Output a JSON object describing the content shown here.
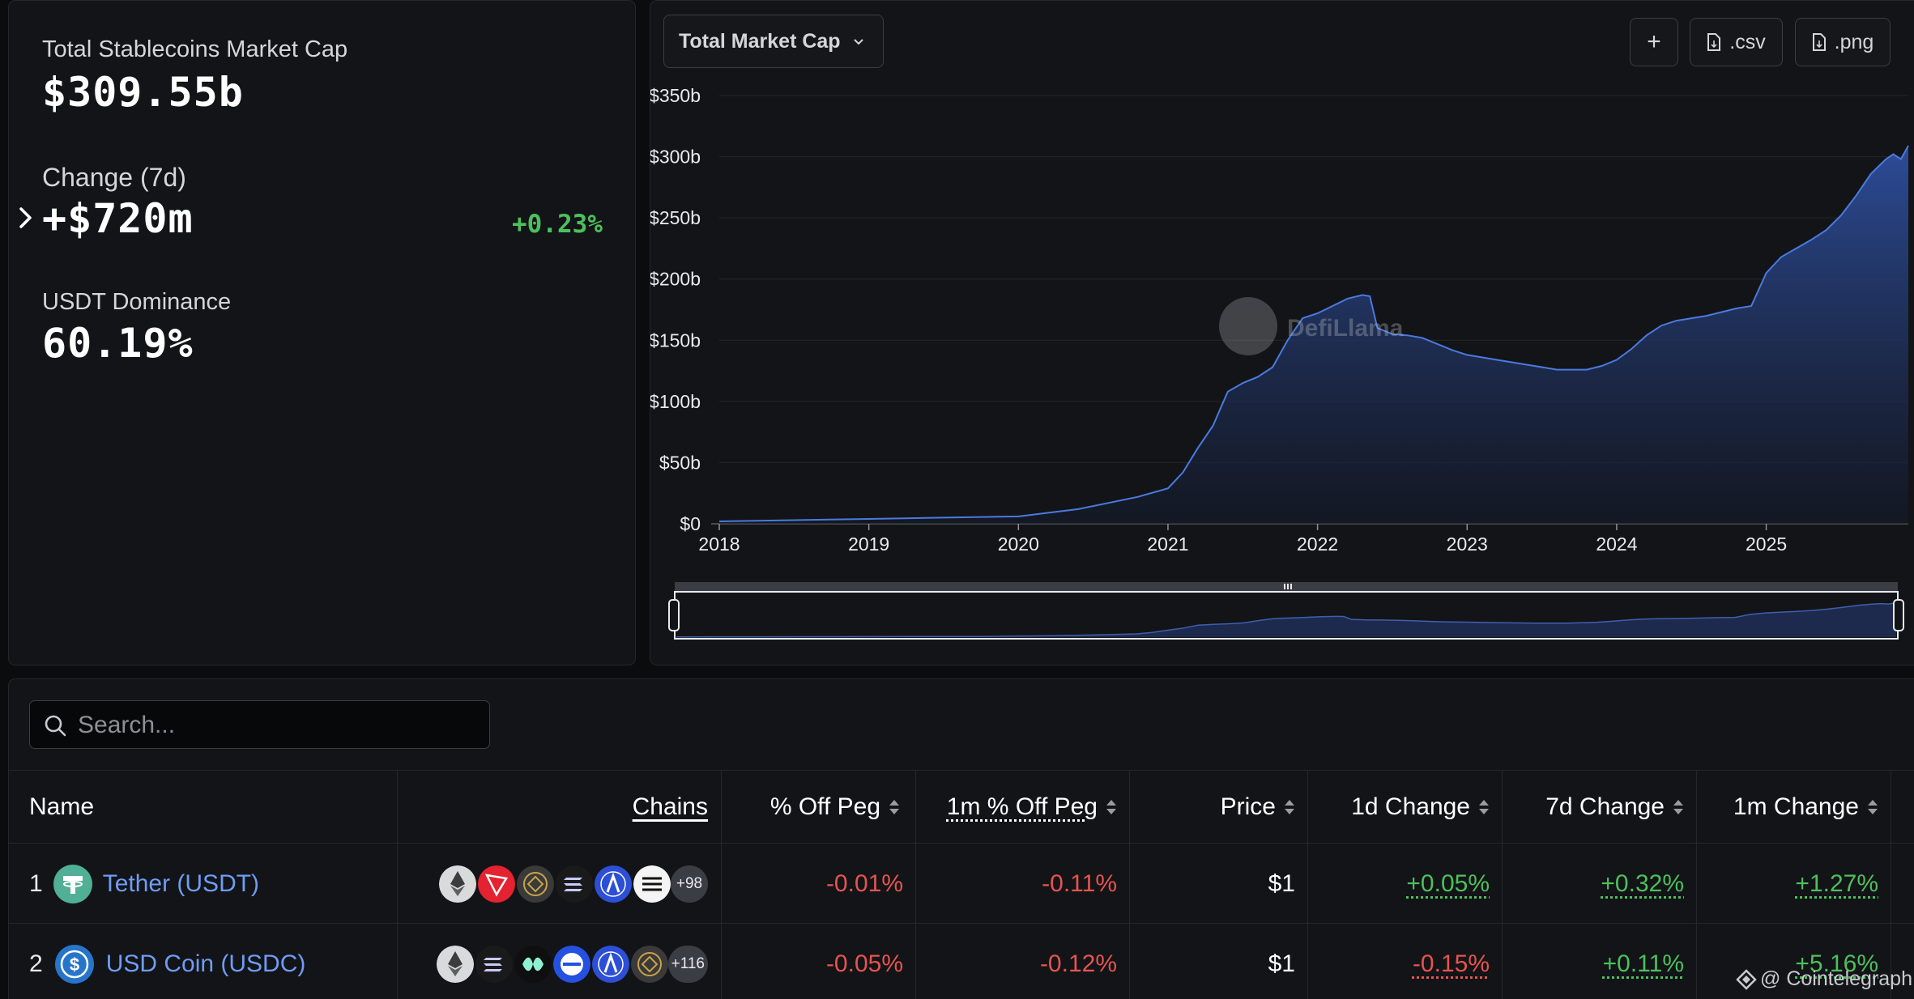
{
  "colors": {
    "accent": "#4a7ae0",
    "positive": "#4cc05c",
    "negative": "#e5544f",
    "link": "#6f9cf4"
  },
  "stats": {
    "total_label": "Total Stablecoins Market Cap",
    "total_value": "$309.55b",
    "change_label": "Change (7d)",
    "change_value": "+$720m",
    "change_pct": "+0.23%",
    "dominance_label": "USDT Dominance",
    "dominance_value": "60.19%"
  },
  "chart_panel": {
    "metric_select": "Total Market Cap",
    "add_label": "+",
    "csv_label": ".csv",
    "png_label": ".png",
    "watermark": "DefiLlama"
  },
  "chart_data": {
    "type": "area",
    "title": "",
    "xlabel": "",
    "ylabel": "",
    "ylim": [
      0,
      350
    ],
    "xlim": [
      2018.0,
      2025.95
    ],
    "y_unit": "billions USD",
    "yticks": [
      "$0",
      "$50b",
      "$100b",
      "$150b",
      "$200b",
      "$250b",
      "$300b",
      "$350b"
    ],
    "xticks": [
      "2018",
      "2019",
      "2020",
      "2021",
      "2022",
      "2023",
      "2024",
      "2025"
    ],
    "grid": true,
    "legend": "none",
    "series": [
      {
        "x": [
          2018.0,
          2018.5,
          2019.0,
          2019.5,
          2020.0,
          2020.2,
          2020.4,
          2020.6,
          2020.8,
          2021.0,
          2021.1,
          2021.2,
          2021.3,
          2021.4,
          2021.5,
          2021.6,
          2021.7,
          2021.8,
          2021.9,
          2022.0,
          2022.1,
          2022.2,
          2022.3,
          2022.35,
          2022.4,
          2022.5,
          2022.6,
          2022.7,
          2022.8,
          2022.9,
          2023.0,
          2023.2,
          2023.4,
          2023.6,
          2023.8,
          2023.9,
          2024.0,
          2024.1,
          2024.2,
          2024.3,
          2024.4,
          2024.6,
          2024.8,
          2024.9,
          2025.0,
          2025.1,
          2025.2,
          2025.3,
          2025.4,
          2025.5,
          2025.6,
          2025.7,
          2025.8,
          2025.85,
          2025.9,
          2025.95
        ],
        "y": [
          2,
          3,
          4,
          5,
          6,
          9,
          12,
          17,
          22,
          29,
          42,
          62,
          80,
          108,
          115,
          120,
          128,
          150,
          168,
          172,
          178,
          184,
          187,
          186,
          160,
          155,
          154,
          152,
          147,
          142,
          138,
          134,
          130,
          126,
          126,
          129,
          134,
          143,
          154,
          162,
          166,
          170,
          176,
          178,
          205,
          218,
          225,
          232,
          240,
          252,
          268,
          286,
          298,
          302,
          298,
          309
        ]
      }
    ]
  },
  "table": {
    "search_placeholder": "Search...",
    "headers": {
      "name": "Name",
      "chains": "Chains",
      "off_peg": "% Off Peg",
      "off_peg_1m": "1m % Off Peg",
      "price": "Price",
      "change_1d": "1d Change",
      "change_7d": "7d Change",
      "change_1m": "1m Change"
    },
    "rows": [
      {
        "rank": "1",
        "name": "Tether (USDT)",
        "chains_more": "+98",
        "off_peg": "-0.01%",
        "off_peg_1m": "-0.11%",
        "price": "$1",
        "change_1d": "+0.05%",
        "change_7d": "+0.32%",
        "change_1m": "+1.27%",
        "chain_icons": [
          "ethereum-icon",
          "tron-icon",
          "bnb-icon",
          "solana-icon",
          "arbitrum-icon",
          "aptos-icon"
        ]
      },
      {
        "rank": "2",
        "name": "USD Coin (USDC)",
        "chains_more": "+116",
        "off_peg": "-0.05%",
        "off_peg_1m": "-0.12%",
        "price": "$1",
        "change_1d": "-0.15%",
        "change_7d": "+0.11%",
        "change_1m": "+5.16%",
        "chain_icons": [
          "ethereum-icon",
          "solana-icon",
          "sui-icon",
          "base-icon",
          "arbitrum-icon",
          "bnb-icon"
        ]
      }
    ]
  },
  "credit": "@ Cointelegraph"
}
